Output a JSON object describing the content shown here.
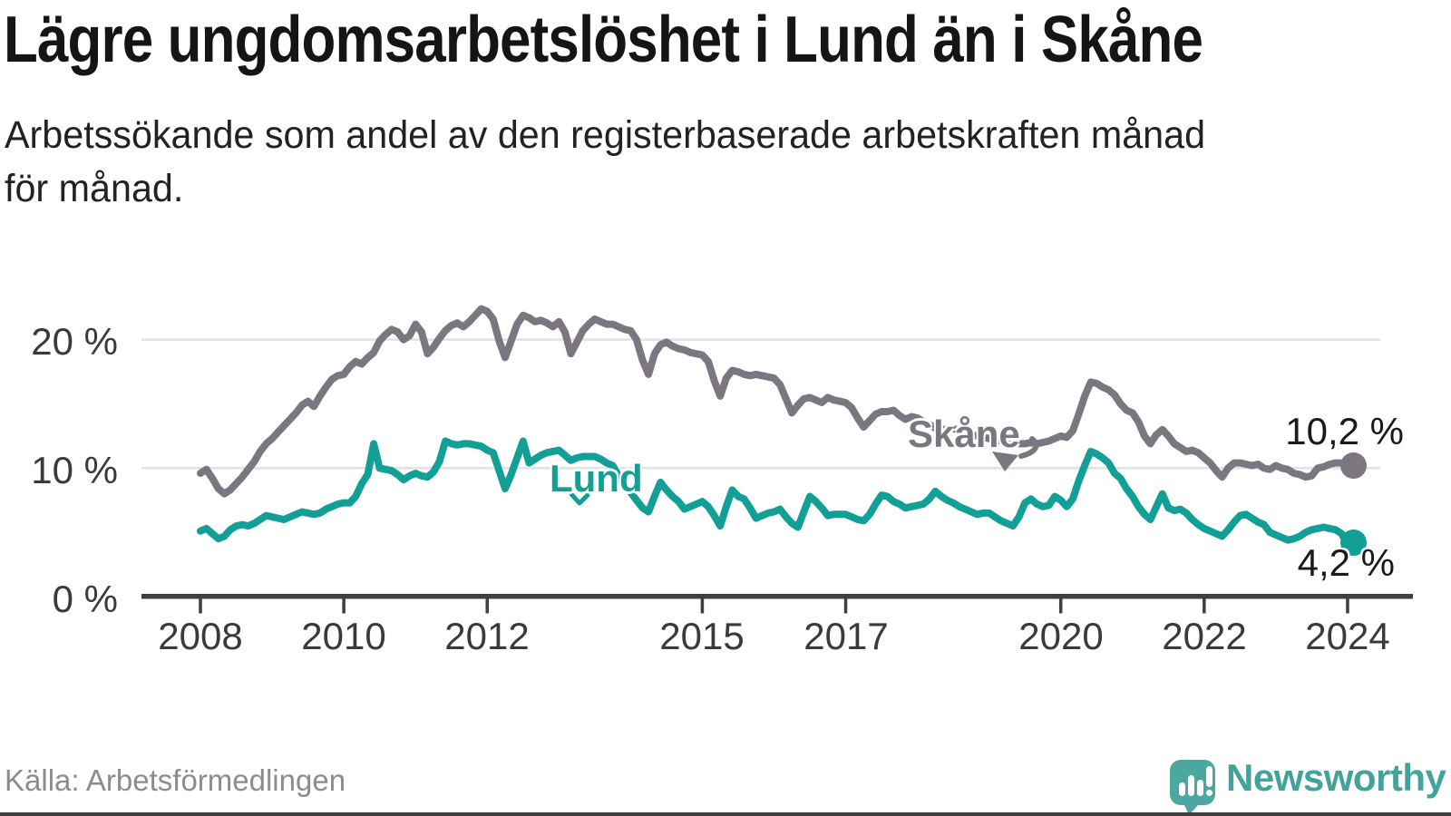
{
  "header": {
    "title": "Lägre ungdomsarbetslöshet i Lund än i Skåne",
    "subtitle_line1": "Arbetssökande som andel av den registerbaserade arbetskraften månad",
    "subtitle_line2": "för månad."
  },
  "source": {
    "label": "Källa: Arbetsförmedlingen"
  },
  "brand": {
    "name": "Newsworthy"
  },
  "chart_data": {
    "type": "line",
    "title": "Lägre ungdomsarbetslöshet i Lund än i Skåne",
    "x_axis": {
      "unit": "month",
      "start": "2008-01",
      "end": "2024-02"
    },
    "ylim": [
      0,
      24
    ],
    "grid": "horizontal",
    "legend_position": "inline-labels",
    "y_ticks": [
      {
        "label": "0 %",
        "value": 0
      },
      {
        "label": "10 %",
        "value": 10
      },
      {
        "label": "20 %",
        "value": 20
      }
    ],
    "x_ticks": [
      {
        "label": "2008",
        "year": 2008
      },
      {
        "label": "2010",
        "year": 2010
      },
      {
        "label": "2012",
        "year": 2012
      },
      {
        "label": "2015",
        "year": 2015
      },
      {
        "label": "2017",
        "year": 2017
      },
      {
        "label": "2020",
        "year": 2020
      },
      {
        "label": "2022",
        "year": 2022
      },
      {
        "label": "2024",
        "year": 2024
      }
    ],
    "series": [
      {
        "name": "Skåne",
        "color": "#7B7680",
        "end_label": "10,2 %",
        "last_value": 10.2,
        "values": [
          9.6,
          9.9,
          9.2,
          8.4,
          8.0,
          8.3,
          8.8,
          9.3,
          9.9,
          10.5,
          11.3,
          11.9,
          12.3,
          12.8,
          13.3,
          13.8,
          14.3,
          14.9,
          15.2,
          14.8,
          15.6,
          16.3,
          16.9,
          17.2,
          17.3,
          17.9,
          18.3,
          18.1,
          18.6,
          19.0,
          19.9,
          20.4,
          20.8,
          20.6,
          20.0,
          20.3,
          21.2,
          20.6,
          18.9,
          19.4,
          20.1,
          20.7,
          21.1,
          21.3,
          21.0,
          21.4,
          21.9,
          22.4,
          22.2,
          21.6,
          19.9,
          18.6,
          19.9,
          21.2,
          21.9,
          21.7,
          21.4,
          21.5,
          21.3,
          21.0,
          21.4,
          20.6,
          18.9,
          19.8,
          20.7,
          21.2,
          21.6,
          21.4,
          21.2,
          21.2,
          21.0,
          20.8,
          20.7,
          20.0,
          18.4,
          17.3,
          18.9,
          19.6,
          19.8,
          19.5,
          19.3,
          19.2,
          19.0,
          18.9,
          18.8,
          18.3,
          16.8,
          15.6,
          17.0,
          17.6,
          17.5,
          17.3,
          17.2,
          17.3,
          17.2,
          17.1,
          17.0,
          16.5,
          15.4,
          14.3,
          14.9,
          15.4,
          15.5,
          15.3,
          15.1,
          15.5,
          15.3,
          15.2,
          15.1,
          14.7,
          13.9,
          13.2,
          13.7,
          14.2,
          14.4,
          14.4,
          14.5,
          14.1,
          13.8,
          14.0,
          13.9,
          13.6,
          13.4,
          13.1,
          13.0,
          13.0,
          13.1,
          12.9,
          12.7,
          12.6,
          12.5,
          12.4,
          12.3,
          12.2,
          12.1,
          12.0,
          11.9,
          11.9,
          11.9,
          12.0,
          11.9,
          12.0,
          12.1,
          12.3,
          12.5,
          12.4,
          12.9,
          14.2,
          15.6,
          16.7,
          16.6,
          16.3,
          16.1,
          15.7,
          15.0,
          14.5,
          14.3,
          13.6,
          12.5,
          11.9,
          12.6,
          13.0,
          12.5,
          11.9,
          11.6,
          11.3,
          11.4,
          11.2,
          10.8,
          10.4,
          9.8,
          9.3,
          10.0,
          10.4,
          10.4,
          10.3,
          10.2,
          10.3,
          10.0,
          9.9,
          10.2,
          10.0,
          9.9,
          9.6,
          9.5,
          9.3,
          9.4,
          10.0,
          10.1,
          10.3,
          10.4,
          10.4,
          10.3,
          10.2
        ]
      },
      {
        "name": "Lund",
        "color": "#12A096",
        "end_label": "4,2 %",
        "last_value": 4.2,
        "values": [
          5.1,
          5.3,
          4.9,
          4.5,
          4.7,
          5.2,
          5.5,
          5.6,
          5.5,
          5.7,
          6.0,
          6.3,
          6.2,
          6.1,
          6.0,
          6.2,
          6.4,
          6.6,
          6.5,
          6.4,
          6.5,
          6.8,
          7.0,
          7.2,
          7.3,
          7.3,
          7.8,
          8.8,
          9.5,
          11.9,
          10.0,
          9.9,
          9.8,
          9.5,
          9.1,
          9.4,
          9.6,
          9.4,
          9.3,
          9.7,
          10.5,
          12.1,
          11.9,
          11.8,
          11.9,
          11.9,
          11.8,
          11.7,
          11.4,
          11.2,
          9.8,
          8.4,
          9.5,
          10.8,
          12.1,
          10.4,
          10.7,
          11.0,
          11.2,
          11.3,
          11.4,
          11.0,
          10.6,
          10.8,
          10.9,
          10.9,
          10.9,
          10.7,
          10.4,
          10.2,
          9.4,
          8.6,
          8.1,
          7.5,
          6.9,
          6.6,
          7.8,
          8.9,
          8.3,
          7.8,
          7.4,
          6.8,
          7.0,
          7.2,
          7.4,
          7.0,
          6.3,
          5.5,
          7.0,
          8.3,
          7.8,
          7.6,
          6.9,
          6.1,
          6.3,
          6.5,
          6.6,
          6.8,
          6.2,
          5.7,
          5.4,
          6.6,
          7.8,
          7.4,
          6.9,
          6.3,
          6.4,
          6.4,
          6.4,
          6.2,
          6.0,
          5.9,
          6.4,
          7.2,
          7.9,
          7.8,
          7.4,
          7.2,
          6.9,
          7.0,
          7.1,
          7.2,
          7.6,
          8.2,
          7.8,
          7.5,
          7.3,
          7.0,
          6.8,
          6.6,
          6.4,
          6.5,
          6.5,
          6.2,
          5.9,
          5.7,
          5.5,
          6.2,
          7.3,
          7.6,
          7.2,
          7.0,
          7.1,
          7.8,
          7.5,
          7.0,
          7.6,
          9.0,
          10.2,
          11.3,
          11.1,
          10.8,
          10.4,
          9.6,
          9.2,
          8.4,
          7.8,
          7.0,
          6.4,
          6.0,
          7.0,
          8.0,
          6.9,
          6.7,
          6.8,
          6.5,
          6.0,
          5.6,
          5.3,
          5.1,
          4.9,
          4.7,
          5.2,
          5.8,
          6.3,
          6.4,
          6.1,
          5.8,
          5.6,
          5.0,
          4.8,
          4.6,
          4.4,
          4.5,
          4.7,
          5.0,
          5.2,
          5.3,
          5.4,
          5.3,
          5.2,
          4.9,
          4.0,
          4.2
        ]
      }
    ]
  }
}
